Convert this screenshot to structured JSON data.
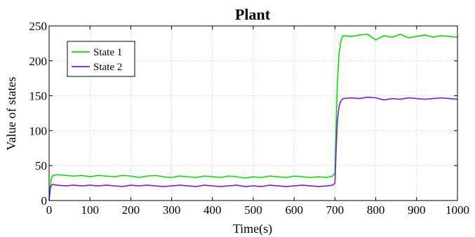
{
  "chart_data": {
    "type": "line",
    "title": "Plant",
    "xlabel": "Time(s)",
    "ylabel": "Value of states",
    "xlim": [
      0,
      1000
    ],
    "ylim": [
      0,
      250
    ],
    "xticks": [
      0,
      100,
      200,
      300,
      400,
      500,
      600,
      700,
      800,
      900,
      1000
    ],
    "yticks": [
      0,
      50,
      100,
      150,
      200,
      250
    ],
    "grid": true,
    "legend_position": "top-left",
    "series": [
      {
        "name": "State 1",
        "color": "#00e000",
        "x": [
          0,
          3,
          6,
          10,
          20,
          40,
          60,
          80,
          100,
          120,
          140,
          160,
          180,
          200,
          220,
          240,
          260,
          280,
          300,
          320,
          340,
          360,
          380,
          400,
          420,
          440,
          460,
          480,
          500,
          520,
          540,
          560,
          580,
          600,
          620,
          640,
          660,
          680,
          695,
          700,
          703,
          706,
          710,
          715,
          720,
          740,
          760,
          780,
          800,
          820,
          840,
          860,
          880,
          900,
          920,
          940,
          960,
          980,
          1000
        ],
        "y": [
          0,
          20,
          33,
          36,
          37,
          36,
          35,
          36,
          34,
          36,
          35,
          34,
          36,
          35,
          33,
          35,
          36,
          34,
          33,
          35,
          34,
          33,
          35,
          34,
          33,
          35,
          34,
          32,
          34,
          33,
          35,
          34,
          33,
          35,
          34,
          33,
          34,
          33,
          35,
          40,
          110,
          170,
          210,
          230,
          236,
          235,
          237,
          238,
          230,
          236,
          234,
          238,
          233,
          235,
          237,
          234,
          236,
          235,
          234
        ]
      },
      {
        "name": "State 2",
        "color": "#7a1fd1",
        "x": [
          0,
          3,
          6,
          10,
          20,
          40,
          60,
          80,
          100,
          120,
          140,
          160,
          180,
          200,
          220,
          240,
          260,
          280,
          300,
          320,
          340,
          360,
          380,
          400,
          420,
          440,
          460,
          480,
          500,
          520,
          540,
          560,
          580,
          600,
          620,
          640,
          660,
          680,
          695,
          700,
          703,
          706,
          710,
          715,
          720,
          740,
          760,
          780,
          800,
          820,
          840,
          860,
          880,
          900,
          920,
          940,
          960,
          980,
          1000
        ],
        "y": [
          0,
          18,
          22,
          23,
          22,
          21,
          22,
          21,
          22,
          21,
          22,
          21,
          20,
          22,
          21,
          22,
          21,
          20,
          21,
          22,
          21,
          20,
          22,
          21,
          20,
          21,
          22,
          20,
          21,
          20,
          22,
          21,
          20,
          21,
          22,
          21,
          20,
          21,
          22,
          25,
          75,
          115,
          135,
          143,
          146,
          147,
          146,
          148,
          147,
          144,
          146,
          145,
          147,
          146,
          145,
          146,
          147,
          146,
          145
        ]
      }
    ]
  }
}
